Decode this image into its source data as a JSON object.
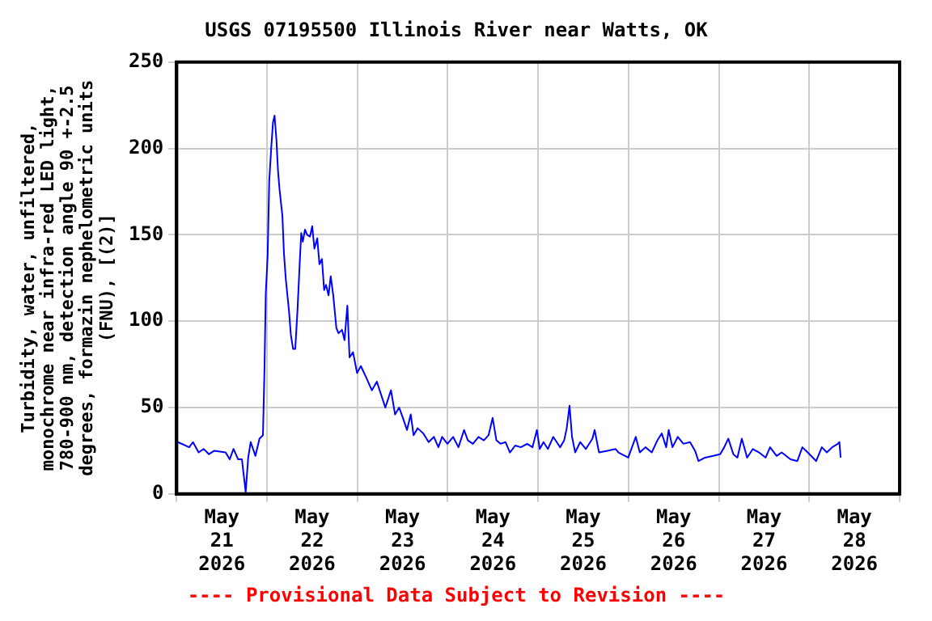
{
  "chart_data": {
    "type": "line",
    "title": "USGS 07195500 Illinois River near Watts, OK",
    "ylabel": "Turbidity, water, unfiltered, monochrome near infra-red LED light, 780-900 nm, detection angle 90 +-2.5 degrees, formazin nephelometric units (FNU), [(2)]",
    "annotations": [
      "---- Provisional Data Subject to Revision ----"
    ],
    "xlim": [
      "2026-05-21T00:00",
      "2026-05-29T00:00"
    ],
    "xticks": [
      {
        "value": "2026-05-21T00:00",
        "label": null
      },
      {
        "value": "2026-05-21T12:00",
        "label": "May\n21\n2026"
      },
      {
        "value": "2026-05-22T00:00",
        "label": null
      },
      {
        "value": "2026-05-22T12:00",
        "label": "May\n22\n2026"
      },
      {
        "value": "2026-05-23T00:00",
        "label": null
      },
      {
        "value": "2026-05-23T12:00",
        "label": "May\n23\n2026"
      },
      {
        "value": "2026-05-24T00:00",
        "label": null
      },
      {
        "value": "2026-05-24T12:00",
        "label": "May\n24\n2026"
      },
      {
        "value": "2026-05-25T00:00",
        "label": null
      },
      {
        "value": "2026-05-25T12:00",
        "label": "May\n25\n2026"
      },
      {
        "value": "2026-05-26T00:00",
        "label": null
      },
      {
        "value": "2026-05-26T12:00",
        "label": "May\n26\n2026"
      },
      {
        "value": "2026-05-27T00:00",
        "label": null
      },
      {
        "value": "2026-05-27T12:00",
        "label": "May\n27\n2026"
      },
      {
        "value": "2026-05-28T00:00",
        "label": null
      },
      {
        "value": "2026-05-28T12:00",
        "label": "May\n28\n2026"
      },
      {
        "value": "2026-05-29T00:00",
        "label": null
      }
    ],
    "ylim": [
      0,
      250
    ],
    "yticks": [
      0,
      50,
      100,
      150,
      200,
      250
    ],
    "grid": true,
    "legend": false,
    "marker": "none",
    "line_style": "solid",
    "series": [
      {
        "color": "#0000ff",
        "x": [
          "2026-05-21T00:20",
          "2026-05-21T03:20",
          "2026-05-21T04:20",
          "2026-05-21T05:50",
          "2026-05-21T07:10",
          "2026-05-21T08:35",
          "2026-05-21T10:00",
          "2026-05-21T13:00",
          "2026-05-21T14:05",
          "2026-05-21T15:05",
          "2026-05-21T16:20",
          "2026-05-21T17:20",
          "2026-05-21T18:20",
          "2026-05-21T19:00",
          "2026-05-21T19:40",
          "2026-05-21T20:55",
          "2026-05-21T22:00",
          "2026-05-21T22:55",
          "2026-05-21T23:20",
          "2026-05-21T23:40",
          "2026-05-22T00:10",
          "2026-05-22T00:35",
          "2026-05-22T01:10",
          "2026-05-22T01:35",
          "2026-05-22T02:00",
          "2026-05-22T02:30",
          "2026-05-22T02:55",
          "2026-05-22T03:20",
          "2026-05-22T04:05",
          "2026-05-22T04:30",
          "2026-05-22T05:00",
          "2026-05-22T05:50",
          "2026-05-22T06:20",
          "2026-05-22T06:55",
          "2026-05-22T07:30",
          "2026-05-22T08:05",
          "2026-05-22T08:40",
          "2026-05-22T09:05",
          "2026-05-22T09:30",
          "2026-05-22T10:05",
          "2026-05-22T10:40",
          "2026-05-22T11:25",
          "2026-05-22T12:00",
          "2026-05-22T12:35",
          "2026-05-22T13:20",
          "2026-05-22T13:55",
          "2026-05-22T14:35",
          "2026-05-22T15:10",
          "2026-05-22T15:40",
          "2026-05-22T16:20",
          "2026-05-22T16:55",
          "2026-05-22T17:35",
          "2026-05-22T18:25",
          "2026-05-22T19:00",
          "2026-05-22T19:55",
          "2026-05-22T20:35",
          "2026-05-22T21:20",
          "2026-05-22T21:55",
          "2026-05-22T22:50",
          "2026-05-22T23:55",
          "2026-05-23T00:55",
          "2026-05-23T02:25",
          "2026-05-23T03:50",
          "2026-05-23T05:10",
          "2026-05-23T06:40",
          "2026-05-23T07:25",
          "2026-05-23T08:55",
          "2026-05-23T10:00",
          "2026-05-23T11:05",
          "2026-05-23T12:05",
          "2026-05-23T13:10",
          "2026-05-23T14:10",
          "2026-05-23T14:55",
          "2026-05-23T16:00",
          "2026-05-23T17:30",
          "2026-05-23T18:55",
          "2026-05-23T20:20",
          "2026-05-23T21:30",
          "2026-05-23T22:30",
          "2026-05-23T23:55",
          "2026-05-24T01:25",
          "2026-05-24T02:50",
          "2026-05-24T04:20",
          "2026-05-24T05:20",
          "2026-05-24T06:40",
          "2026-05-24T08:10",
          "2026-05-24T09:35",
          "2026-05-24T10:50",
          "2026-05-24T11:55",
          "2026-05-24T12:55",
          "2026-05-24T14:00",
          "2026-05-24T15:20",
          "2026-05-24T16:30",
          "2026-05-24T17:55",
          "2026-05-24T19:25",
          "2026-05-24T21:05",
          "2026-05-24T22:30",
          "2026-05-24T23:40",
          "2026-05-25T00:25",
          "2026-05-25T01:25",
          "2026-05-25T02:35",
          "2026-05-25T04:00",
          "2026-05-25T05:50",
          "2026-05-25T06:55",
          "2026-05-25T07:35",
          "2026-05-25T08:20",
          "2026-05-25T09:00",
          "2026-05-25T09:50",
          "2026-05-25T11:10",
          "2026-05-25T12:40",
          "2026-05-25T14:25",
          "2026-05-25T15:00",
          "2026-05-25T16:10",
          "2026-05-25T18:25",
          "2026-05-25T20:35",
          "2026-05-25T21:20",
          "2026-05-25T23:55",
          "2026-05-26T01:55",
          "2026-05-26T03:00",
          "2026-05-26T04:30",
          "2026-05-26T06:10",
          "2026-05-26T07:40",
          "2026-05-26T08:50",
          "2026-05-26T10:00",
          "2026-05-26T10:40",
          "2026-05-26T11:40",
          "2026-05-26T13:05",
          "2026-05-26T14:35",
          "2026-05-26T16:20",
          "2026-05-26T17:40",
          "2026-05-26T18:35",
          "2026-05-26T20:20",
          "2026-05-26T22:30",
          "2026-05-27T00:20",
          "2026-05-27T01:25",
          "2026-05-27T02:30",
          "2026-05-27T03:50",
          "2026-05-27T04:55",
          "2026-05-27T06:05",
          "2026-05-27T07:30",
          "2026-05-27T09:00",
          "2026-05-27T10:40",
          "2026-05-27T12:25",
          "2026-05-27T13:35",
          "2026-05-27T15:20",
          "2026-05-27T16:40",
          "2026-05-27T19:00",
          "2026-05-27T20:50",
          "2026-05-27T22:10",
          "2026-05-27T23:35",
          "2026-05-28T01:50",
          "2026-05-28T03:20",
          "2026-05-28T04:40",
          "2026-05-28T06:05",
          "2026-05-28T07:35",
          "2026-05-28T08:00",
          "2026-05-28T08:20"
        ],
        "values": [
          30,
          27,
          30,
          24,
          26,
          23,
          25,
          24,
          20,
          26,
          20,
          20,
          1,
          21,
          30,
          22,
          32,
          34,
          73,
          116,
          138,
          181,
          202,
          215,
          219,
          205,
          187,
          176,
          161,
          139,
          124,
          106,
          92,
          84,
          84,
          106,
          133,
          151,
          146,
          153,
          150,
          149,
          155,
          142,
          148,
          133,
          136,
          118,
          121,
          115,
          126,
          115,
          96,
          93,
          95,
          89,
          109,
          79,
          82,
          70,
          74,
          67,
          60,
          65,
          55,
          50,
          60,
          46,
          50,
          44,
          37,
          46,
          34,
          38,
          35,
          30,
          33,
          27,
          33,
          29,
          33,
          27,
          37,
          31,
          29,
          33,
          31,
          34,
          44,
          31,
          29,
          30,
          24,
          28,
          27,
          29,
          27,
          37,
          26,
          30,
          26,
          33,
          27,
          31,
          38,
          51,
          33,
          24,
          30,
          26,
          32,
          37,
          24,
          25,
          26,
          24,
          21,
          33,
          24,
          27,
          24,
          31,
          35,
          27,
          37,
          27,
          33,
          29,
          30,
          25,
          19,
          21,
          22,
          23,
          27,
          32,
          23,
          21,
          32,
          21,
          26,
          24,
          21,
          27,
          22,
          24,
          20,
          19,
          27,
          24,
          19,
          27,
          24,
          27,
          29,
          30,
          21
        ]
      }
    ]
  }
}
